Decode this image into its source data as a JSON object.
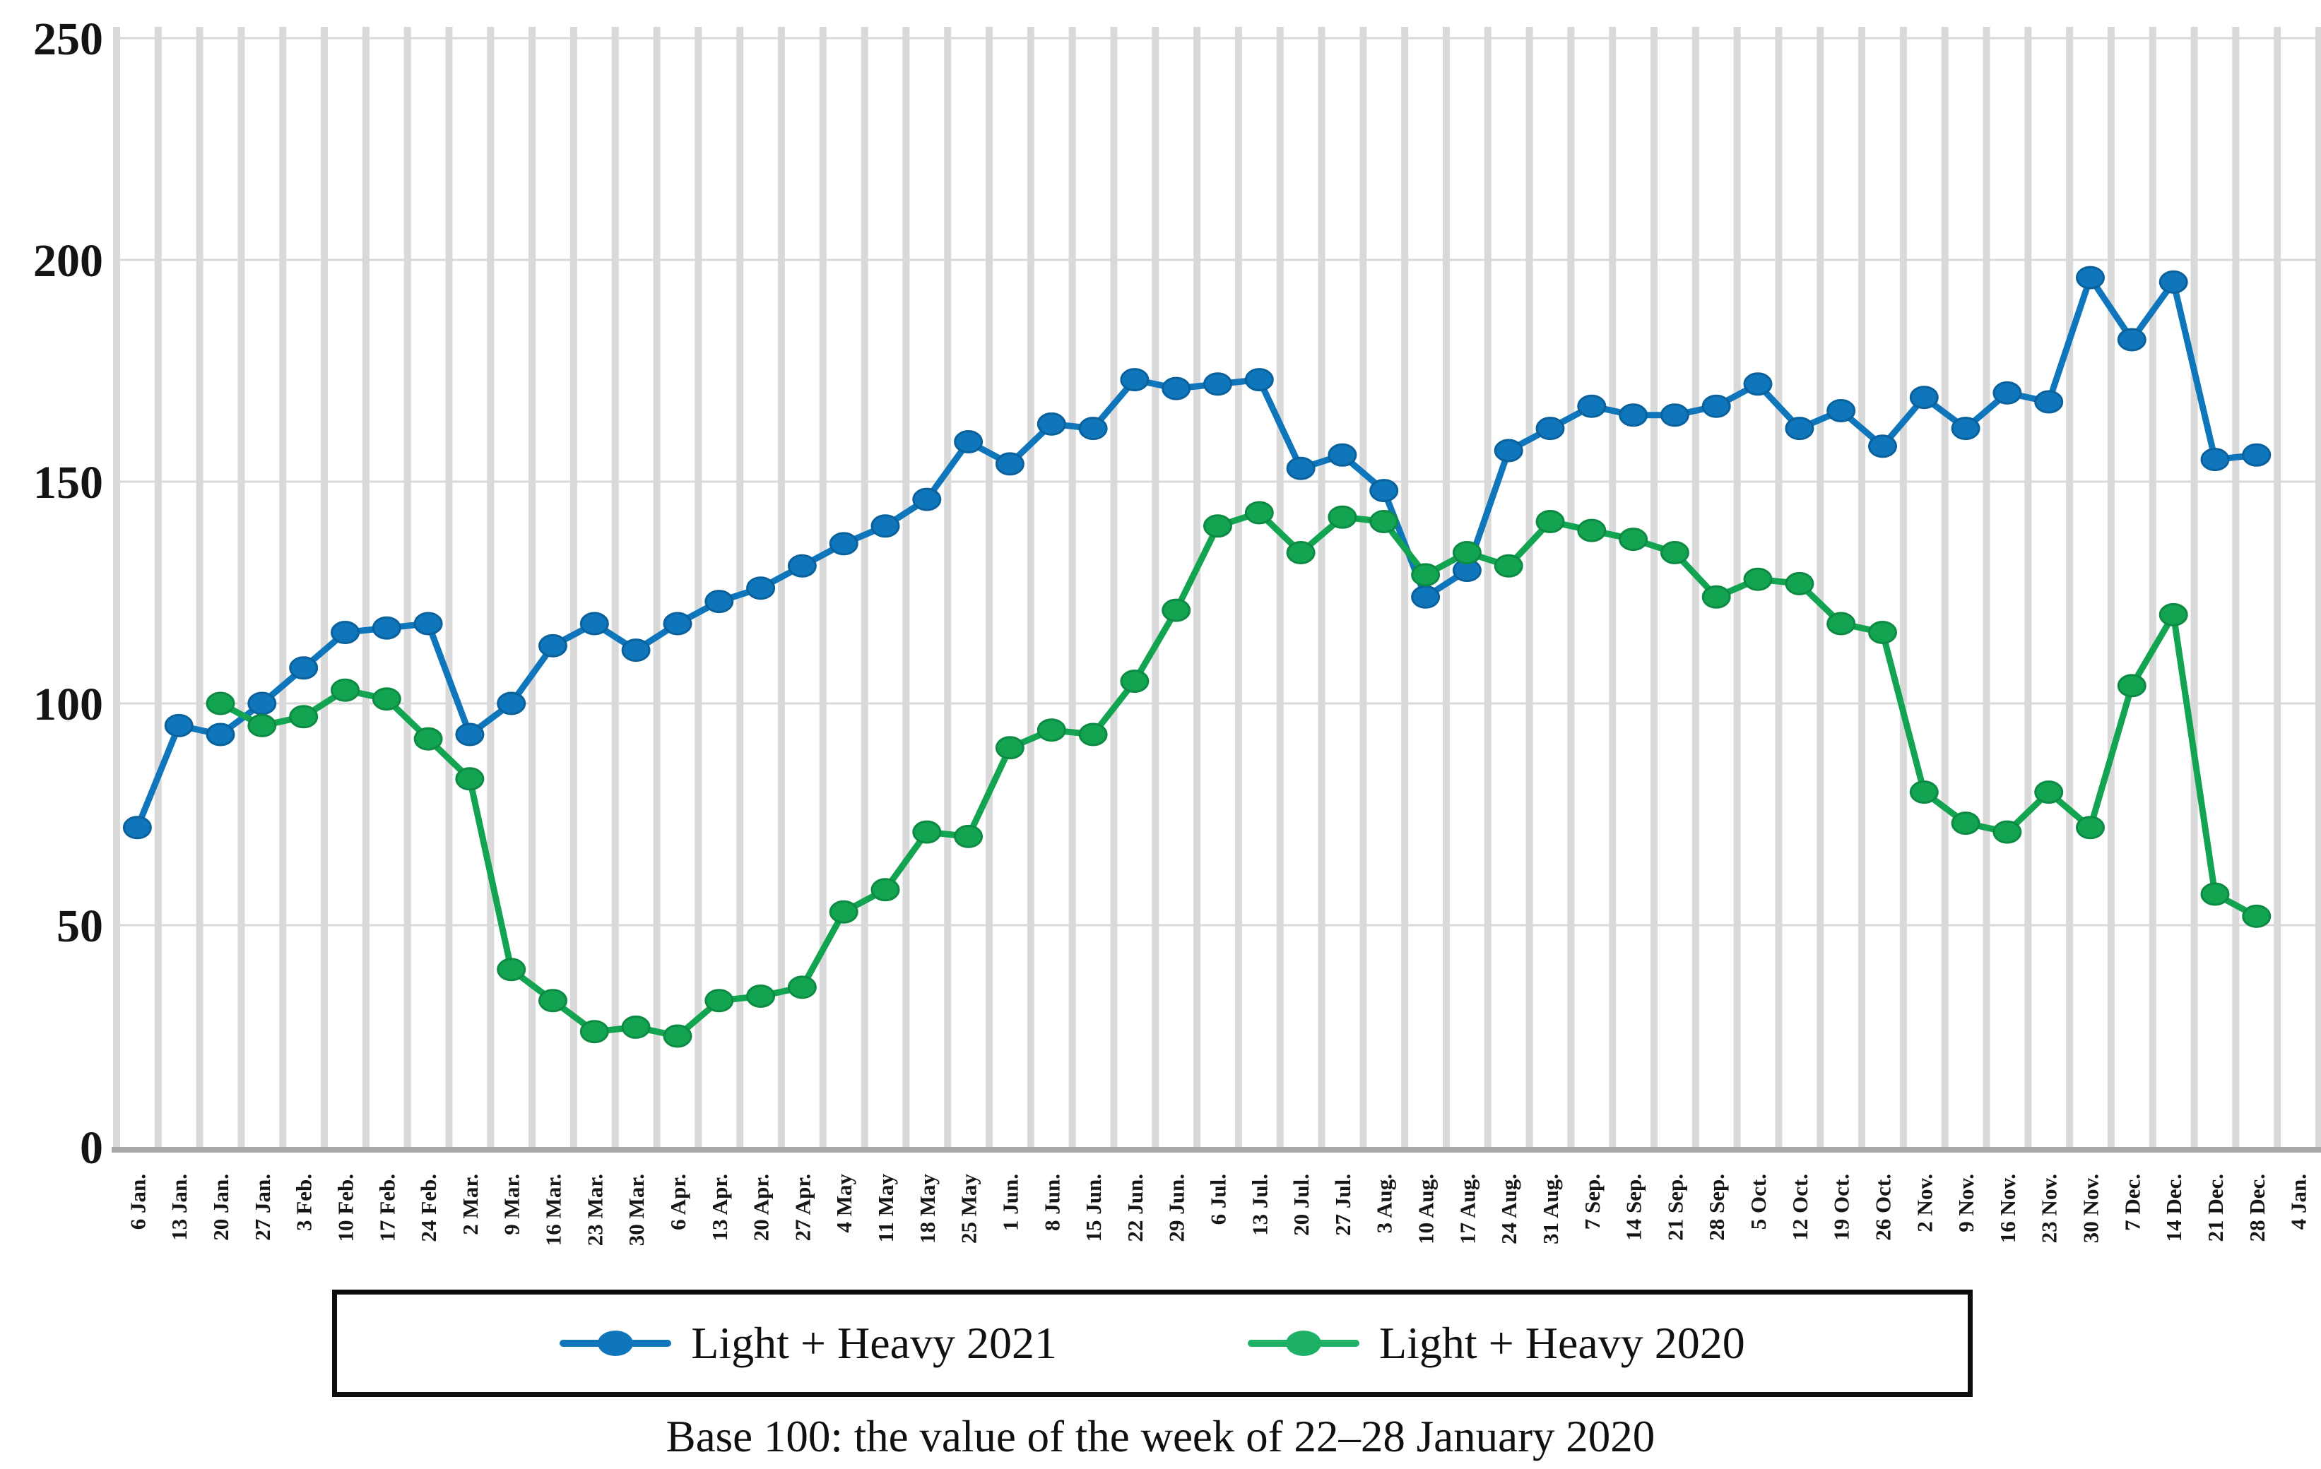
{
  "figure": {
    "caption": "Base 100: the value of the week of 22–28 January 2020"
  },
  "legend": {
    "items": [
      {
        "label": "Light + Heavy 2021",
        "color": "#0f76bb"
      },
      {
        "label": "Light + Heavy 2020",
        "color": "#1eb165"
      }
    ]
  },
  "chart_data": {
    "type": "line",
    "title": "",
    "xlabel": "",
    "ylabel": "",
    "ylim": [
      0,
      250
    ],
    "yticks": [
      0,
      50,
      100,
      150,
      200,
      250
    ],
    "grid": {
      "vertical_bands": true,
      "horizontal": true
    },
    "legend_position": "bottom",
    "base_note": "Base 100: the value of the week of 22–28 January 2020",
    "categories": [
      "6 Jan.",
      "13 Jan.",
      "20 Jan.",
      "27 Jan.",
      "3 Feb.",
      "10 Feb.",
      "17 Feb.",
      "24 Feb.",
      "2 Mar.",
      "9 Mar.",
      "16 Mar.",
      "23 Mar.",
      "30 Mar.",
      "6 Apr.",
      "13 Apr.",
      "20 Apr.",
      "27 Apr.",
      "4 May",
      "11 May",
      "18 May",
      "25 May",
      "1 Jun.",
      "8 Jun.",
      "15 Jun.",
      "22 Jun.",
      "29 Jun.",
      "6 Jul.",
      "13 Jul.",
      "20 Jul.",
      "27 Jul.",
      "3 Aug.",
      "10 Aug.",
      "17 Aug.",
      "24 Aug.",
      "31 Aug.",
      "7 Sep.",
      "14 Sep.",
      "21 Sep.",
      "28 Sep.",
      "5 Oct.",
      "12 Oct.",
      "19 Oct.",
      "26 Oct.",
      "2 Nov.",
      "9 Nov.",
      "16 Nov.",
      "23 Nov.",
      "30 Nov.",
      "7 Dec.",
      "14 Dec.",
      "21 Dec.",
      "28 Dec.",
      "4 Jan."
    ],
    "series": [
      {
        "name": "Light + Heavy 2021",
        "color": "#0f76bb",
        "marker_edge": "#0a619c",
        "values": [
          72,
          95,
          93,
          100,
          108,
          116,
          117,
          118,
          93,
          100,
          113,
          118,
          112,
          118,
          123,
          126,
          131,
          136,
          140,
          146,
          159,
          154,
          163,
          162,
          173,
          171,
          172,
          173,
          153,
          156,
          148,
          124,
          130,
          157,
          162,
          167,
          165,
          165,
          167,
          172,
          162,
          166,
          158,
          169,
          162,
          170,
          168,
          196,
          182,
          195,
          155,
          156,
          null
        ]
      },
      {
        "name": "Light + Heavy 2020",
        "color": "#13a452",
        "marker_edge": "#0d8a43",
        "values": [
          null,
          null,
          100,
          95,
          97,
          103,
          101,
          92,
          83,
          40,
          33,
          26,
          27,
          25,
          33,
          34,
          36,
          53,
          58,
          71,
          70,
          90,
          94,
          93,
          105,
          121,
          140,
          143,
          134,
          142,
          141,
          129,
          134,
          131,
          141,
          139,
          137,
          134,
          124,
          128,
          127,
          118,
          116,
          80,
          73,
          71,
          80,
          72,
          104,
          120,
          57,
          52,
          null
        ]
      }
    ]
  }
}
